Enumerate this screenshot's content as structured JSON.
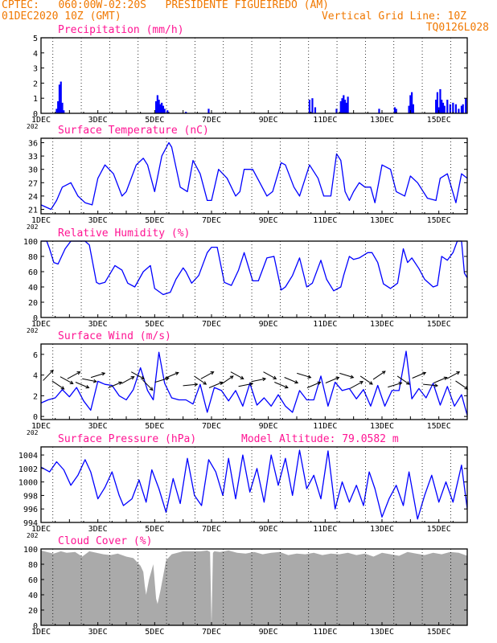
{
  "header": {
    "line1": "CPTEC:   060:00W-02:20S   PRESIDENTE FIGUEIREDO (AM)",
    "line2_left": "01DEC2020 10Z (GMT)",
    "line2_right": "Vertical Grid Line: 10Z",
    "line3_right": "TQ0126L028",
    "color": "#f07800"
  },
  "x_axis": {
    "tick_labels": [
      "1DEC",
      "3DEC",
      "5DEC",
      "7DEC",
      "9DEC",
      "11DEC",
      "13DEC",
      "15DEC"
    ],
    "tick_days": [
      0,
      2,
      4,
      6,
      8,
      10,
      12,
      14
    ],
    "range_days": [
      0,
      15
    ],
    "stub_label": "202",
    "grid": "dotted vertical lines at 10Z each day"
  },
  "chart_data": [
    {
      "type": "bar",
      "title": "Precipitation (mm/h)",
      "ylim": [
        0,
        5
      ],
      "yticks": [
        "0",
        "1",
        "2",
        "3",
        "4",
        "5"
      ],
      "color": "#0000ff",
      "bars": [
        [
          0.55,
          0.3
        ],
        [
          0.6,
          0.8
        ],
        [
          0.65,
          1.9
        ],
        [
          0.7,
          2.1
        ],
        [
          0.75,
          0.7
        ],
        [
          0.8,
          0.2
        ],
        [
          4.05,
          0.8
        ],
        [
          4.1,
          1.2
        ],
        [
          4.15,
          0.9
        ],
        [
          4.2,
          0.6
        ],
        [
          4.25,
          0.7
        ],
        [
          4.3,
          0.5
        ],
        [
          4.35,
          0.3
        ],
        [
          4.45,
          0.2
        ],
        [
          5.1,
          0.1
        ],
        [
          5.9,
          0.3
        ],
        [
          9.45,
          0.9
        ],
        [
          9.55,
          1.0
        ],
        [
          9.65,
          0.4
        ],
        [
          10.4,
          0.3
        ],
        [
          10.55,
          0.8
        ],
        [
          10.6,
          1.0
        ],
        [
          10.65,
          1.2
        ],
        [
          10.7,
          0.9
        ],
        [
          10.75,
          0.7
        ],
        [
          10.8,
          1.1
        ],
        [
          11.9,
          0.3
        ],
        [
          12.45,
          0.4
        ],
        [
          12.5,
          0.3
        ],
        [
          12.95,
          0.5
        ],
        [
          13.0,
          1.2
        ],
        [
          13.05,
          1.4
        ],
        [
          13.1,
          0.6
        ],
        [
          13.9,
          0.9
        ],
        [
          13.95,
          1.4
        ],
        [
          14.0,
          0.4
        ],
        [
          14.05,
          1.6
        ],
        [
          14.1,
          0.9
        ],
        [
          14.15,
          0.7
        ],
        [
          14.2,
          0.5
        ],
        [
          14.3,
          0.9
        ],
        [
          14.4,
          0.6
        ],
        [
          14.5,
          0.7
        ],
        [
          14.6,
          0.6
        ],
        [
          14.7,
          0.3
        ],
        [
          14.8,
          0.5
        ],
        [
          14.85,
          0.6
        ],
        [
          14.95,
          1.0
        ]
      ]
    },
    {
      "type": "line",
      "title": "Surface Temperature (nC)",
      "ylim": [
        20,
        37
      ],
      "yticks": [
        "21",
        "24",
        "27",
        "30",
        "33",
        "36"
      ],
      "color": "#0000ff",
      "x": [
        0,
        0.35,
        0.55,
        0.75,
        1.05,
        1.3,
        1.55,
        1.8,
        2.0,
        2.25,
        2.55,
        2.85,
        3.0,
        3.35,
        3.6,
        3.75,
        4.0,
        4.25,
        4.5,
        4.6,
        4.9,
        5.15,
        5.35,
        5.6,
        5.85,
        6.0,
        6.25,
        6.55,
        6.85,
        7.0,
        7.15,
        7.45,
        7.7,
        7.95,
        8.15,
        8.45,
        8.6,
        8.9,
        9.1,
        9.45,
        9.75,
        9.95,
        10.2,
        10.4,
        10.55,
        10.7,
        10.85,
        11.0,
        11.2,
        11.4,
        11.6,
        11.75,
        12.0,
        12.3,
        12.5,
        12.8,
        13.0,
        13.25,
        13.6,
        13.9,
        14.05,
        14.3,
        14.6,
        14.8,
        15.0
      ],
      "y": [
        22,
        21,
        23,
        26,
        27,
        24,
        22.5,
        22,
        28,
        31,
        29,
        24,
        25,
        31,
        32.5,
        31,
        25,
        33,
        36,
        35,
        26,
        25,
        32,
        29,
        23,
        23,
        30,
        28,
        24,
        25,
        30,
        30,
        27,
        24,
        25,
        31.5,
        31,
        26,
        24,
        31,
        28,
        24,
        24,
        33.5,
        32,
        25,
        23,
        25,
        27,
        26,
        26,
        22.5,
        31,
        30,
        25,
        24,
        28.5,
        27,
        23.5,
        23,
        28,
        29,
        22.5,
        29,
        28
      ]
    },
    {
      "type": "line",
      "title": "Relative Humidity (%)",
      "ylim": [
        0,
        100
      ],
      "yticks": [
        "0",
        "20",
        "40",
        "60",
        "80",
        "100"
      ],
      "color": "#0000ff",
      "x": [
        0,
        0.2,
        0.3,
        0.45,
        0.6,
        0.85,
        1.05,
        1.3,
        1.55,
        1.7,
        1.95,
        2.05,
        2.25,
        2.6,
        2.85,
        3.05,
        3.3,
        3.6,
        3.85,
        4.0,
        4.3,
        4.55,
        4.75,
        5.0,
        5.1,
        5.3,
        5.55,
        5.85,
        6.0,
        6.2,
        6.45,
        6.7,
        6.95,
        7.15,
        7.45,
        7.65,
        7.95,
        8.2,
        8.45,
        8.6,
        8.85,
        9.1,
        9.35,
        9.55,
        9.85,
        10.05,
        10.3,
        10.55,
        10.65,
        10.85,
        11.0,
        11.2,
        11.5,
        11.65,
        11.85,
        12.05,
        12.3,
        12.55,
        12.75,
        12.9,
        13.05,
        13.3,
        13.5,
        13.8,
        13.95,
        14.1,
        14.3,
        14.5,
        14.65,
        14.8,
        14.9,
        15.0
      ],
      "y": [
        100,
        100,
        90,
        72,
        70,
        90,
        100,
        100,
        100,
        95,
        46,
        44,
        46,
        68,
        62,
        45,
        40,
        60,
        68,
        38,
        30,
        33,
        50,
        65,
        60,
        45,
        55,
        85,
        92,
        92,
        46,
        42,
        62,
        85,
        48,
        48,
        78,
        80,
        36,
        40,
        55,
        78,
        40,
        45,
        75,
        50,
        35,
        40,
        55,
        80,
        76,
        78,
        85,
        85,
        72,
        44,
        38,
        45,
        90,
        72,
        78,
        64,
        50,
        40,
        42,
        80,
        75,
        85,
        100,
        100,
        58,
        52
      ]
    },
    {
      "type": "line",
      "title": "Surface Wind (m/s)",
      "ylim": [
        -0.3,
        7
      ],
      "yticks": [
        "0",
        "2",
        "4",
        "6"
      ],
      "color": "#0000ff",
      "x": [
        0,
        0.25,
        0.5,
        0.75,
        1.0,
        1.25,
        1.5,
        1.75,
        2.0,
        2.25,
        2.5,
        2.75,
        3.0,
        3.25,
        3.5,
        3.75,
        3.95,
        4.15,
        4.35,
        4.6,
        4.85,
        5.1,
        5.35,
        5.6,
        5.85,
        6.1,
        6.35,
        6.6,
        6.85,
        7.1,
        7.35,
        7.6,
        7.85,
        8.1,
        8.35,
        8.6,
        8.85,
        9.1,
        9.35,
        9.6,
        9.85,
        10.1,
        10.35,
        10.6,
        10.85,
        11.1,
        11.35,
        11.6,
        11.85,
        12.1,
        12.35,
        12.6,
        12.85,
        13.05,
        13.3,
        13.55,
        13.8,
        14.05,
        14.3,
        14.55,
        14.8,
        15.0
      ],
      "y": [
        1.3,
        1.6,
        1.8,
        2.6,
        1.9,
        2.8,
        1.5,
        0.6,
        3.4,
        3.1,
        3.0,
        2.0,
        1.6,
        2.6,
        4.7,
        2.5,
        1.6,
        6.2,
        3.2,
        1.8,
        1.6,
        1.6,
        1.2,
        3.1,
        0.4,
        2.8,
        2.5,
        1.5,
        2.5,
        1.0,
        3.2,
        1.1,
        1.8,
        1.0,
        2.1,
        1.0,
        0.4,
        2.5,
        1.6,
        1.6,
        3.9,
        1.0,
        3.3,
        2.5,
        2.7,
        1.7,
        2.6,
        1.0,
        3.0,
        1.0,
        2.5,
        2.5,
        6.3,
        1.7,
        2.7,
        1.8,
        3.2,
        1.1,
        2.9,
        1.0,
        2.1,
        0.1
      ],
      "arrows": [
        [
          0.25,
          0.8
        ],
        [
          0.6,
          -0.6
        ],
        [
          0.9,
          -0.5
        ],
        [
          1.15,
          0.5
        ],
        [
          1.45,
          -0.4
        ],
        [
          1.7,
          -0.2
        ],
        [
          2.0,
          0.3
        ],
        [
          2.6,
          0.4
        ],
        [
          3.05,
          0.5
        ],
        [
          3.4,
          -0.5
        ],
        [
          3.75,
          -0.8
        ],
        [
          4.25,
          0.3
        ],
        [
          4.6,
          0.4
        ],
        [
          5.25,
          0.1
        ],
        [
          5.6,
          -0.6
        ],
        [
          5.85,
          0.5
        ],
        [
          6.15,
          0.4
        ],
        [
          6.55,
          0.6
        ],
        [
          6.9,
          -0.5
        ],
        [
          7.2,
          0.2
        ],
        [
          7.65,
          0.2
        ],
        [
          8.05,
          -0.5
        ],
        [
          8.45,
          -0.4
        ],
        [
          8.8,
          -0.4
        ],
        [
          9.25,
          -0.3
        ],
        [
          9.6,
          0.4
        ],
        [
          10.25,
          0.4
        ],
        [
          10.75,
          -0.3
        ],
        [
          11.1,
          0.5
        ],
        [
          11.45,
          -0.6
        ],
        [
          11.9,
          0.6
        ],
        [
          12.45,
          0.3
        ],
        [
          12.75,
          -0.6
        ],
        [
          13.3,
          0.4
        ],
        [
          13.7,
          -0.1
        ],
        [
          14.05,
          0.4
        ],
        [
          14.5,
          0.5
        ],
        [
          14.8,
          -0.6
        ]
      ]
    },
    {
      "type": "line",
      "title": "Surface Pressure (hPa)",
      "annotation": "Model Altitude: 79.0582 m",
      "ylim": [
        994,
        1005.2
      ],
      "yticks": [
        "994",
        "996",
        "998",
        "1000",
        "1002",
        "1004"
      ],
      "color": "#0000ff",
      "x": [
        0,
        0.3,
        0.55,
        0.8,
        1.05,
        1.3,
        1.55,
        1.75,
        2.0,
        2.25,
        2.5,
        2.75,
        2.9,
        3.2,
        3.45,
        3.7,
        3.9,
        4.15,
        4.4,
        4.65,
        4.9,
        5.15,
        5.4,
        5.65,
        5.9,
        6.15,
        6.4,
        6.6,
        6.85,
        7.1,
        7.35,
        7.6,
        7.85,
        8.1,
        8.35,
        8.6,
        8.85,
        9.1,
        9.35,
        9.6,
        9.85,
        10.1,
        10.35,
        10.6,
        10.85,
        11.1,
        11.35,
        11.55,
        11.75,
        12.0,
        12.25,
        12.5,
        12.75,
        12.95,
        13.25,
        13.5,
        13.75,
        14.0,
        14.25,
        14.5,
        14.8,
        15.0
      ],
      "y": [
        1002.2,
        1001.5,
        1003.0,
        1001.8,
        999.5,
        1001.0,
        1003.3,
        1001.5,
        997.5,
        999.2,
        1001.5,
        998.0,
        996.5,
        997.5,
        1000.3,
        997.0,
        1001.8,
        999.0,
        995.5,
        1000.5,
        996.8,
        1003.5,
        998.0,
        996.5,
        1003.3,
        1001.5,
        998.0,
        1003.5,
        997.5,
        1004.0,
        998.5,
        1002.0,
        997.0,
        1004.0,
        999.5,
        1003.5,
        998.0,
        1004.7,
        999.0,
        1001.0,
        997.5,
        1004.6,
        996.0,
        1000.0,
        997.0,
        999.5,
        996.5,
        1001.5,
        999.0,
        994.8,
        997.5,
        999.5,
        996.5,
        1001.5,
        994.5,
        998.0,
        1001.0,
        997.0,
        1000.0,
        997.0,
        1002.5,
        996.0
      ]
    },
    {
      "type": "area",
      "title": "Cloud Cover (%)",
      "ylim": [
        0,
        100
      ],
      "yticks": [
        "0",
        "20",
        "40",
        "60",
        "80",
        "100"
      ],
      "color": "#aaaaaa",
      "x": [
        0,
        0.2,
        0.45,
        0.7,
        0.9,
        1.2,
        1.45,
        1.7,
        1.95,
        2.2,
        2.45,
        2.7,
        3.0,
        3.25,
        3.5,
        3.6,
        3.65,
        3.7,
        3.8,
        3.95,
        4.05,
        4.1,
        4.2,
        4.4,
        4.6,
        4.8,
        5.0,
        5.3,
        5.6,
        5.85,
        5.95,
        6.0,
        6.05,
        6.1,
        6.3,
        6.6,
        6.9,
        7.2,
        7.5,
        7.8,
        8.1,
        8.4,
        8.7,
        9.0,
        9.3,
        9.6,
        9.9,
        10.2,
        10.5,
        10.8,
        11.1,
        11.4,
        11.7,
        12.0,
        12.3,
        12.6,
        12.9,
        13.2,
        13.5,
        13.8,
        14.1,
        14.4,
        14.7,
        15.0
      ],
      "y": [
        98,
        96,
        94,
        97,
        95,
        96,
        90,
        97,
        95,
        93,
        92,
        94,
        90,
        88,
        78,
        70,
        52,
        40,
        60,
        80,
        35,
        28,
        45,
        85,
        93,
        95,
        97,
        97,
        97,
        98,
        96,
        0,
        95,
        97,
        96,
        98,
        95,
        94,
        96,
        93,
        95,
        96,
        92,
        94,
        93,
        95,
        92,
        94,
        93,
        95,
        92,
        94,
        90,
        95,
        93,
        91,
        96,
        94,
        92,
        95,
        93,
        96,
        95,
        91
      ]
    }
  ]
}
